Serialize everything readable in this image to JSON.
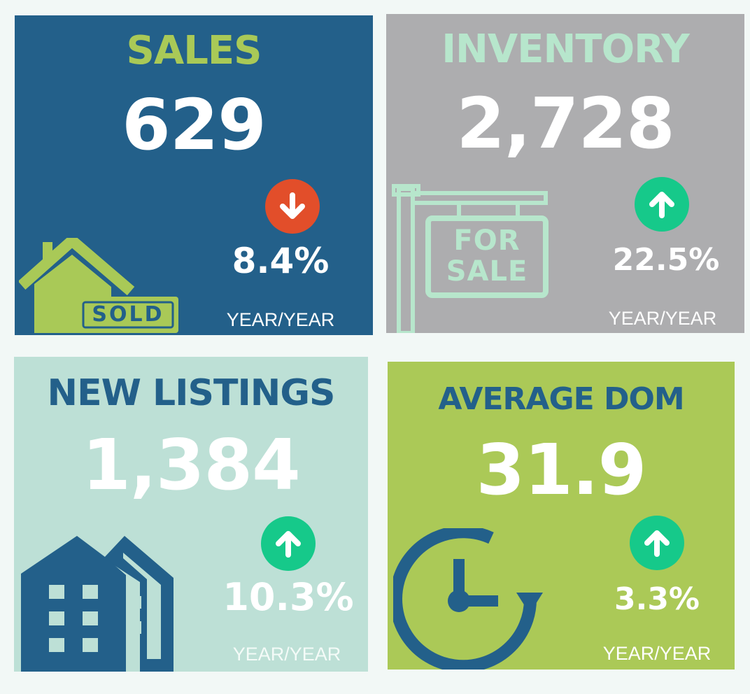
{
  "colors": {
    "background": "#f2f8f6",
    "sales_card": "#23608a",
    "inventory_card": "#adadaf",
    "listings_card": "#bde0d6",
    "dom_card": "#abc957",
    "up_arrow": "#16c98a",
    "down_arrow": "#e24e2a",
    "lime": "#a9c957",
    "mint": "#b7e6cc",
    "navy": "#23608a"
  },
  "cards": {
    "sales": {
      "title": "SALES",
      "value": "629",
      "direction": "down",
      "direction_icon": "arrow-down-icon",
      "change": "8.4%",
      "period": "YEAR/YEAR",
      "illustration": "house-sold-icon",
      "sign_text": "SOLD"
    },
    "inventory": {
      "title": "INVENTORY",
      "value": "2,728",
      "direction": "up",
      "direction_icon": "arrow-up-icon",
      "change": "22.5%",
      "period": "YEAR/YEAR",
      "illustration": "for-sale-sign-icon",
      "sign_text_line1": "FOR",
      "sign_text_line2": "SALE"
    },
    "new_listings": {
      "title": "NEW LISTINGS",
      "value": "1,384",
      "direction": "up",
      "direction_icon": "arrow-up-icon",
      "change": "10.3%",
      "period": "YEAR/YEAR",
      "illustration": "buildings-icon"
    },
    "average_dom": {
      "title": "AVERAGE DOM",
      "value": "31.9",
      "direction": "up",
      "direction_icon": "arrow-up-icon",
      "change": "3.3%",
      "period": "YEAR/YEAR",
      "illustration": "clock-cycle-icon"
    }
  }
}
